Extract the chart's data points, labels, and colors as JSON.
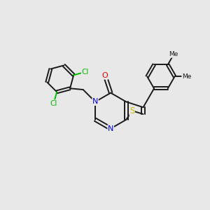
{
  "bg_color": "#e8e8e8",
  "bond_color": "#1a1a1a",
  "N_color": "#0000ee",
  "O_color": "#ee0000",
  "S_color": "#ccbb00",
  "Cl_color": "#00bb00",
  "Me_color": "#1a1a1a",
  "figsize": [
    3.0,
    3.0
  ],
  "dpi": 100,
  "xlim": [
    0,
    9
  ],
  "ylim": [
    0,
    9
  ]
}
